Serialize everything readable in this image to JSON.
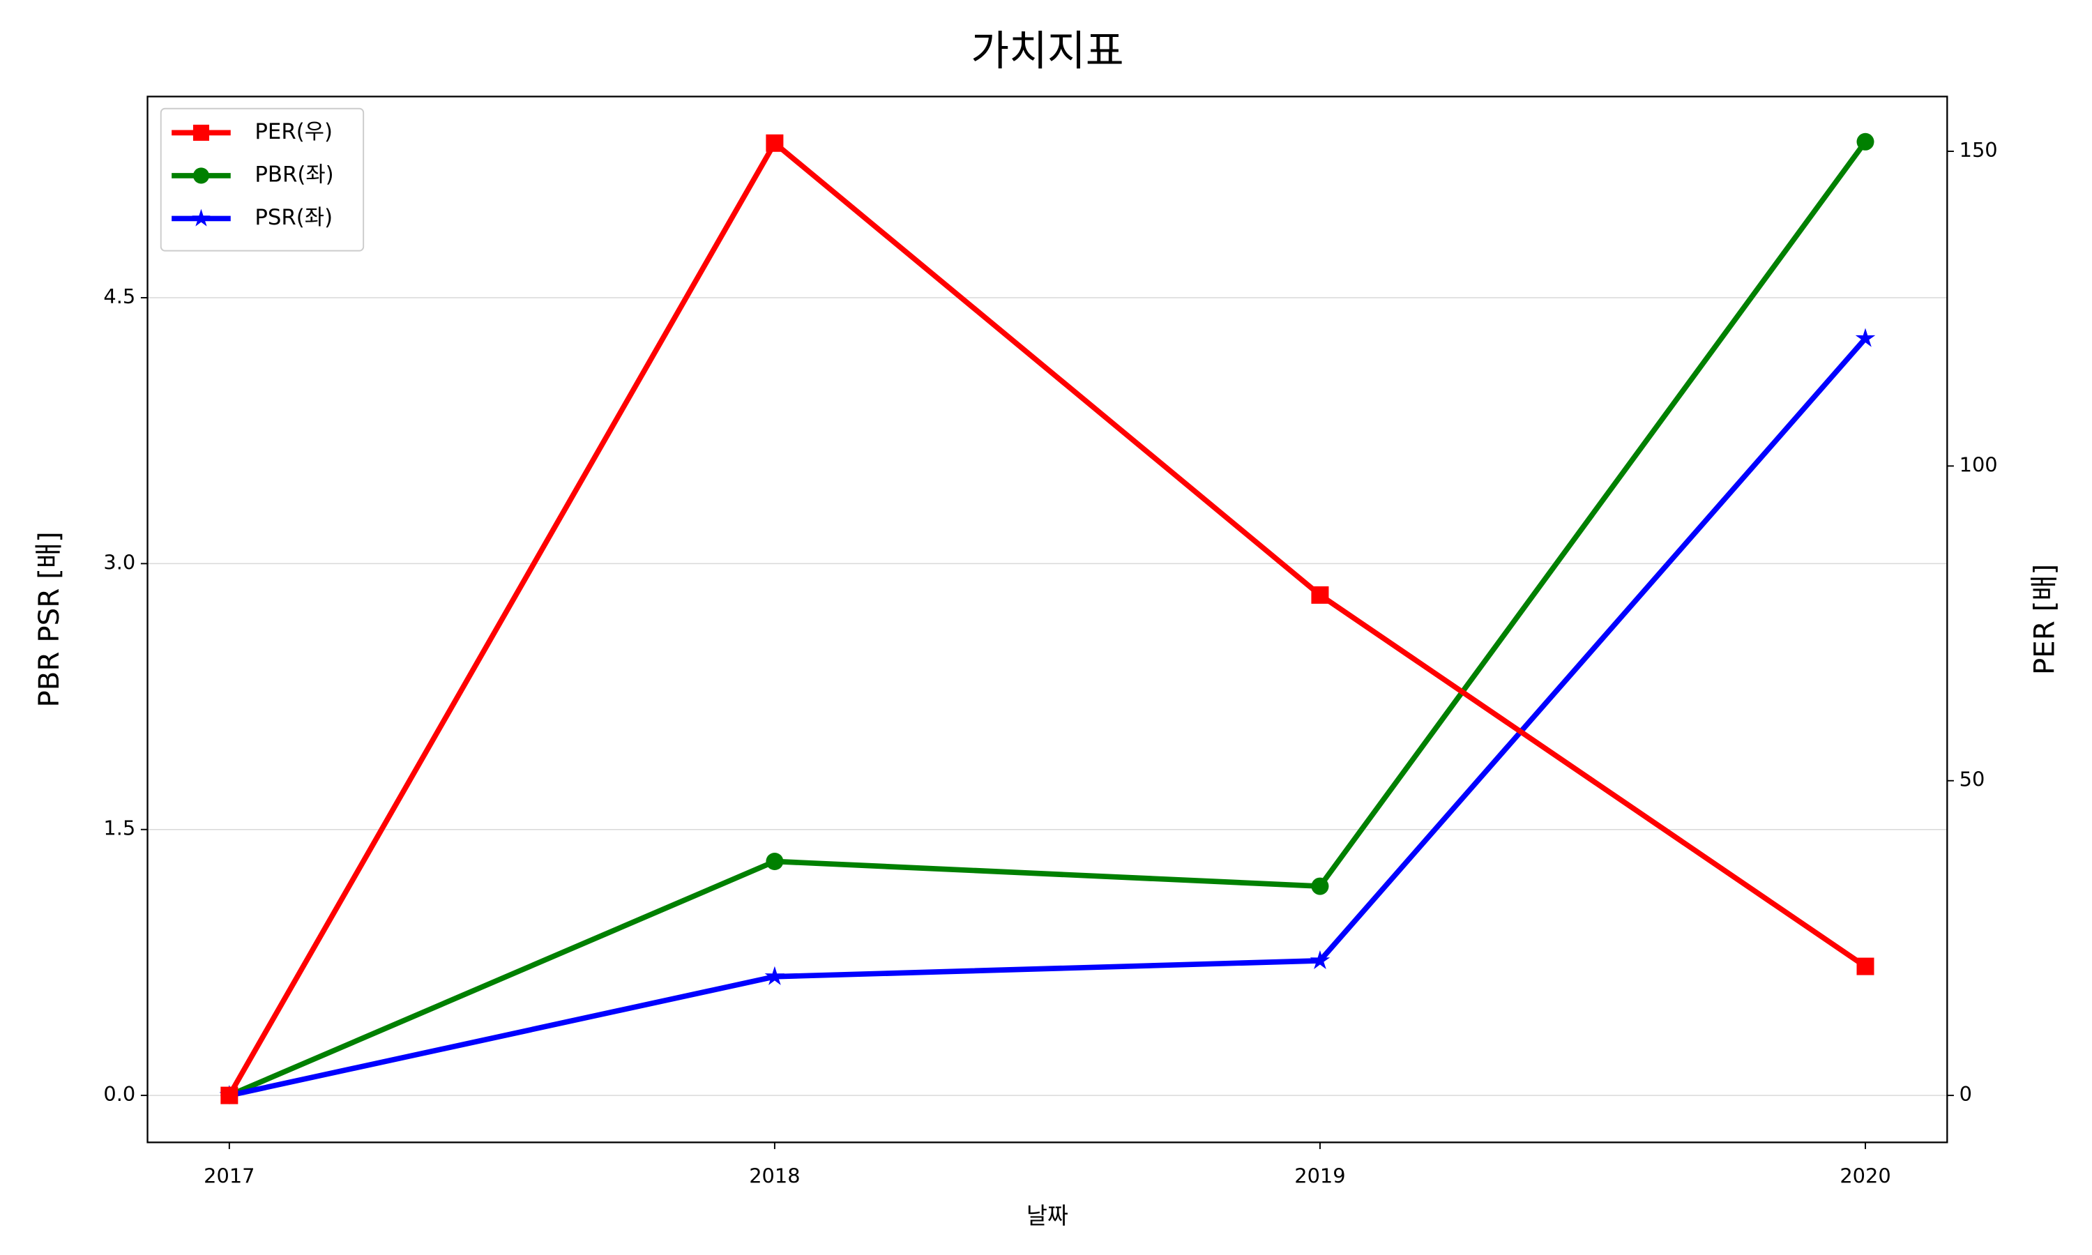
{
  "chart_data": {
    "type": "line",
    "title": "가치지표",
    "x_label": "날짜",
    "y_label": "PBR PSR [배]",
    "y2_label": "PER [배]",
    "y_label_color": "#008000",
    "y2_label_color": "#ff0000",
    "x": [
      2017,
      2018,
      2019,
      2020
    ],
    "xlim": [
      2016.85,
      2020.15
    ],
    "xticks": [
      2017,
      2018,
      2019,
      2020
    ],
    "ylim": [
      -0.265,
      5.635
    ],
    "yticks": [
      {
        "value": 0,
        "label": "0.0"
      },
      1.5,
      {
        "value": 3,
        "label": "3.0"
      },
      4.5
    ],
    "y2lim": [
      -7.46,
      158.7
    ],
    "y2ticks": [
      0,
      50,
      100,
      150
    ],
    "grid": true,
    "legend": "upper left",
    "series": [
      {
        "name": "PER(우)",
        "color": "#ff0000",
        "marker": "square",
        "axis": "y2",
        "values": [
          0,
          151.3,
          79.5,
          20.5
        ]
      },
      {
        "name": "PBR(좌)",
        "color": "#008000",
        "marker": "circle",
        "values": [
          0,
          1.32,
          1.18,
          5.38
        ]
      },
      {
        "name": "PSR(좌)",
        "color": "#0000ff",
        "marker": "star",
        "values": [
          0,
          0.67,
          0.76,
          4.27
        ]
      }
    ]
  }
}
